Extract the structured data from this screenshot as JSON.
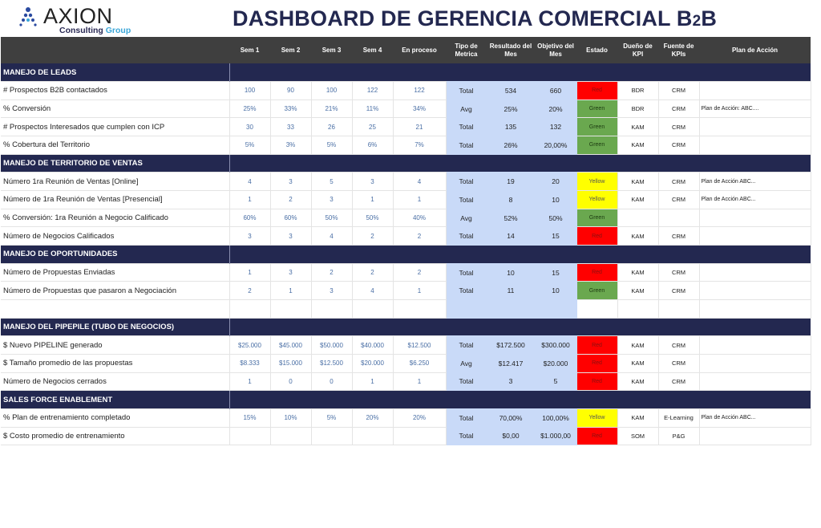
{
  "logo": {
    "name": "AXION",
    "sub1": "Consulting",
    "sub2": "Group"
  },
  "title": {
    "main": "DASHBOARD DE GERENCIA COMERCIAL B",
    "two": "2",
    "end": "B"
  },
  "columns": [
    "",
    "Sem 1",
    "Sem 2",
    "Sem 3",
    "Sem 4",
    "En proceso",
    "Tipo de Metrica",
    "Resultado del Mes",
    "Objetivo del Mes",
    "Estado",
    "Dueño de KPI",
    "Fuente de KPIs",
    "Plan de Acción"
  ],
  "colors": {
    "header": "#3f3f3f",
    "section": "#232850",
    "metric_bg": "#c9daf8",
    "Red": "#ff0000",
    "Green": "#6aa84f",
    "Yellow": "#ffff00"
  },
  "sections": [
    {
      "title": "MANEJO DE LEADS",
      "rows": [
        {
          "label": "# Prospectos B2B contactados",
          "sem": [
            "100",
            "90",
            "100",
            "122",
            "122"
          ],
          "tipo": "Total",
          "resultado": "534",
          "objetivo": "660",
          "estado": "Red",
          "dueno": "BDR",
          "fuente": "CRM",
          "plan": ""
        },
        {
          "label": "% Conversión",
          "sem": [
            "25%",
            "33%",
            "21%",
            "11%",
            "34%"
          ],
          "tipo": "Avg",
          "resultado": "25%",
          "objetivo": "20%",
          "estado": "Green",
          "dueno": "BDR",
          "fuente": "CRM",
          "plan": "Plan de Acción: ABC...."
        },
        {
          "label": "# Prospectos Interesados que cumplen con ICP",
          "sem": [
            "30",
            "33",
            "26",
            "25",
            "21"
          ],
          "tipo": "Total",
          "resultado": "135",
          "objetivo": "132",
          "estado": "Green",
          "dueno": "KAM",
          "fuente": "CRM",
          "plan": ""
        },
        {
          "label": "% Cobertura del Territorio",
          "sem": [
            "5%",
            "3%",
            "5%",
            "6%",
            "7%"
          ],
          "tipo": "Total",
          "resultado": "26%",
          "objetivo": "20,00%",
          "estado": "Green",
          "dueno": "KAM",
          "fuente": "CRM",
          "plan": ""
        }
      ]
    },
    {
      "title": "MANEJO DE TERRITORIO DE VENTAS",
      "rows": [
        {
          "label": "Número 1ra Reunión de Ventas [Online]",
          "sem": [
            "4",
            "3",
            "5",
            "3",
            "4"
          ],
          "tipo": "Total",
          "resultado": "19",
          "objetivo": "20",
          "estado": "Yellow",
          "dueno": "KAM",
          "fuente": "CRM",
          "plan": "Plan de Acción ABC..."
        },
        {
          "label": "Número de 1ra Reunión de Ventas [Presencial]",
          "sem": [
            "1",
            "2",
            "3",
            "1",
            "1"
          ],
          "tipo": "Total",
          "resultado": "8",
          "objetivo": "10",
          "estado": "Yellow",
          "dueno": "KAM",
          "fuente": "CRM",
          "plan": "Plan de Acción ABC..."
        },
        {
          "label": "% Conversión: 1ra Reunión a Negocio Calificado",
          "sem": [
            "60%",
            "60%",
            "50%",
            "50%",
            "40%"
          ],
          "tipo": "Avg",
          "resultado": "52%",
          "objetivo": "50%",
          "estado": "Green",
          "dueno": "",
          "fuente": "",
          "plan": ""
        },
        {
          "label": "Número de Negocios Calificados",
          "sem": [
            "3",
            "3",
            "4",
            "2",
            "2"
          ],
          "tipo": "Total",
          "resultado": "14",
          "objetivo": "15",
          "estado": "Red",
          "dueno": "KAM",
          "fuente": "CRM",
          "plan": ""
        }
      ]
    },
    {
      "title": "MANEJO DE OPORTUNIDADES",
      "rows": [
        {
          "label": "Número de Propuestas Enviadas",
          "sem": [
            "1",
            "3",
            "2",
            "2",
            "2"
          ],
          "tipo": "Total",
          "resultado": "10",
          "objetivo": "15",
          "estado": "Red",
          "dueno": "KAM",
          "fuente": "CRM",
          "plan": ""
        },
        {
          "label": "Número de Propuestas que pasaron a Negociación",
          "sem": [
            "2",
            "1",
            "3",
            "4",
            "1"
          ],
          "tipo": "Total",
          "resultado": "11",
          "objetivo": "10",
          "estado": "Green",
          "dueno": "KAM",
          "fuente": "CRM",
          "plan": ""
        },
        {
          "label": "",
          "sem": [
            "",
            "",
            "",
            "",
            ""
          ],
          "tipo": "",
          "resultado": "",
          "objetivo": "",
          "estado": "",
          "dueno": "",
          "fuente": "",
          "plan": ""
        }
      ]
    },
    {
      "title": "MANEJO DEL PIPEPILE (TUBO DE NEGOCIOS)",
      "rows": [
        {
          "label": "$ Nuevo PIPELINE generado",
          "sem": [
            "$25.000",
            "$45.000",
            "$50.000",
            "$40.000",
            "$12.500"
          ],
          "tipo": "Total",
          "resultado": "$172.500",
          "objetivo": "$300.000",
          "estado": "Red",
          "dueno": "KAM",
          "fuente": "CRM",
          "plan": ""
        },
        {
          "label": "$ Tamaño promedio de las propuestas",
          "sem": [
            "$8.333",
            "$15.000",
            "$12.500",
            "$20.000",
            "$6.250"
          ],
          "tipo": "Avg",
          "resultado": "$12.417",
          "objetivo": "$20.000",
          "estado": "Red",
          "dueno": "KAM",
          "fuente": "CRM",
          "plan": ""
        },
        {
          "label": "Número de Negocios cerrados",
          "sem": [
            "1",
            "0",
            "0",
            "1",
            "1"
          ],
          "tipo": "Total",
          "resultado": "3",
          "objetivo": "5",
          "estado": "Red",
          "dueno": "KAM",
          "fuente": "CRM",
          "plan": ""
        }
      ]
    },
    {
      "title": "SALES FORCE ENABLEMENT",
      "rows": [
        {
          "label": "% Plan de entrenamiento completado",
          "sem": [
            "15%",
            "10%",
            "5%",
            "20%",
            "20%"
          ],
          "tipo": "Total",
          "resultado": "70,00%",
          "objetivo": "100,00%",
          "estado": "Yellow",
          "dueno": "KAM",
          "fuente": "E-Learning",
          "plan": "Plan de Acción ABC..."
        },
        {
          "label": "$ Costo promedio de entrenamiento",
          "sem": [
            "",
            "",
            "",
            "",
            ""
          ],
          "tipo": "Total",
          "resultado": "$0,00",
          "objetivo": "$1.000,00",
          "estado": "Red",
          "dueno": "SOM",
          "fuente": "P&G",
          "plan": ""
        }
      ]
    }
  ]
}
